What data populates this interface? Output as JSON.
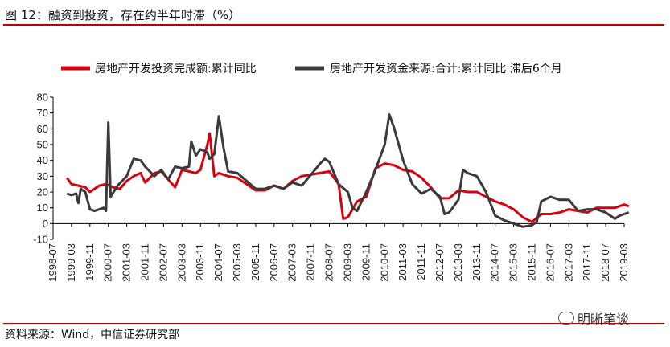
{
  "title": "图 12：融资到投资，存在约半年时滞（%）",
  "source": "资料来源：Wind，中信证券研究部",
  "watermark": "明晰笔谈",
  "chart_data": {
    "type": "line",
    "legend_position": "top",
    "ylim": [
      -10,
      80
    ],
    "yticks": [
      -10,
      0,
      10,
      20,
      30,
      40,
      50,
      60,
      70,
      80
    ],
    "xlim": [
      "1998-07",
      "2019-03"
    ],
    "xticks": [
      "1998-07",
      "1999-03",
      "1999-11",
      "2000-07",
      "2001-03",
      "2001-11",
      "2002-07",
      "2003-03",
      "2003-11",
      "2004-07",
      "2005-03",
      "2005-11",
      "2006-07",
      "2007-03",
      "2007-11",
      "2008-07",
      "2009-03",
      "2009-11",
      "2010-07",
      "2011-03",
      "2011-11",
      "2012-07",
      "2013-03",
      "2013-11",
      "2014-07",
      "2015-03",
      "2015-11",
      "2016-07",
      "2017-03",
      "2017-11",
      "2018-07",
      "2019-03"
    ],
    "series": [
      {
        "name": "房地产开发投资完成额:累计同比",
        "color": "#d7000f",
        "points": [
          [
            "1999-01",
            29
          ],
          [
            "1999-03",
            25
          ],
          [
            "1999-06",
            24
          ],
          [
            "1999-09",
            23
          ],
          [
            "1999-11",
            20
          ],
          [
            "2000-03",
            24
          ],
          [
            "2000-06",
            25
          ],
          [
            "2000-09",
            23
          ],
          [
            "2000-12",
            22
          ],
          [
            "2001-03",
            27
          ],
          [
            "2001-06",
            30
          ],
          [
            "2001-09",
            32
          ],
          [
            "2001-11",
            26
          ],
          [
            "2002-03",
            32
          ],
          [
            "2002-06",
            33
          ],
          [
            "2002-09",
            28
          ],
          [
            "2002-12",
            23
          ],
          [
            "2003-03",
            34
          ],
          [
            "2003-06",
            33
          ],
          [
            "2003-09",
            32
          ],
          [
            "2003-11",
            34
          ],
          [
            "2004-02",
            50
          ],
          [
            "2004-03",
            57
          ],
          [
            "2004-05",
            30
          ],
          [
            "2004-07",
            32
          ],
          [
            "2004-11",
            30
          ],
          [
            "2005-03",
            29
          ],
          [
            "2005-07",
            25
          ],
          [
            "2005-11",
            21
          ],
          [
            "2006-03",
            21
          ],
          [
            "2006-07",
            24
          ],
          [
            "2006-11",
            22
          ],
          [
            "2007-03",
            27
          ],
          [
            "2007-07",
            30
          ],
          [
            "2007-11",
            31
          ],
          [
            "2008-03",
            32
          ],
          [
            "2008-07",
            33
          ],
          [
            "2008-11",
            25
          ],
          [
            "2009-01",
            3
          ],
          [
            "2009-03",
            4
          ],
          [
            "2009-07",
            14
          ],
          [
            "2009-11",
            17
          ],
          [
            "2010-03",
            35
          ],
          [
            "2010-07",
            38
          ],
          [
            "2010-11",
            37
          ],
          [
            "2011-03",
            34
          ],
          [
            "2011-07",
            33
          ],
          [
            "2011-11",
            29
          ],
          [
            "2012-03",
            23
          ],
          [
            "2012-07",
            16
          ],
          [
            "2012-11",
            16
          ],
          [
            "2013-03",
            21
          ],
          [
            "2013-07",
            20
          ],
          [
            "2013-11",
            20
          ],
          [
            "2014-03",
            17
          ],
          [
            "2014-07",
            14
          ],
          [
            "2014-11",
            12
          ],
          [
            "2015-03",
            9
          ],
          [
            "2015-07",
            4
          ],
          [
            "2015-11",
            1
          ],
          [
            "2016-03",
            6
          ],
          [
            "2016-07",
            6
          ],
          [
            "2016-11",
            7
          ],
          [
            "2017-03",
            9
          ],
          [
            "2017-07",
            8
          ],
          [
            "2017-11",
            7
          ],
          [
            "2018-03",
            10
          ],
          [
            "2018-07",
            10
          ],
          [
            "2018-11",
            10
          ],
          [
            "2019-01",
            11
          ],
          [
            "2019-03",
            12
          ],
          [
            "2019-05",
            11
          ]
        ]
      },
      {
        "name": "房地产开发资金来源:合计:累计同比 滞后6个月",
        "color": "#3a3a3a",
        "points": [
          [
            "1999-01",
            19
          ],
          [
            "1999-03",
            18
          ],
          [
            "1999-05",
            19
          ],
          [
            "1999-06",
            13
          ],
          [
            "1999-07",
            22
          ],
          [
            "1999-09",
            20
          ],
          [
            "1999-11",
            9
          ],
          [
            "2000-01",
            8
          ],
          [
            "2000-05",
            10
          ],
          [
            "2000-06",
            8
          ],
          [
            "2000-07",
            64
          ],
          [
            "2000-08",
            17
          ],
          [
            "2000-11",
            24
          ],
          [
            "2001-03",
            30
          ],
          [
            "2001-06",
            41
          ],
          [
            "2001-09",
            40
          ],
          [
            "2001-11",
            36
          ],
          [
            "2002-03",
            30
          ],
          [
            "2002-06",
            34
          ],
          [
            "2002-09",
            28
          ],
          [
            "2002-12",
            36
          ],
          [
            "2003-03",
            35
          ],
          [
            "2003-06",
            36
          ],
          [
            "2003-07",
            52
          ],
          [
            "2003-09",
            43
          ],
          [
            "2003-11",
            47
          ],
          [
            "2004-02",
            45
          ],
          [
            "2004-03",
            41
          ],
          [
            "2004-05",
            44
          ],
          [
            "2004-07",
            68
          ],
          [
            "2004-09",
            48
          ],
          [
            "2004-11",
            33
          ],
          [
            "2005-03",
            32
          ],
          [
            "2005-07",
            27
          ],
          [
            "2005-11",
            22
          ],
          [
            "2006-03",
            22
          ],
          [
            "2006-07",
            24
          ],
          [
            "2006-11",
            22
          ],
          [
            "2007-03",
            26
          ],
          [
            "2007-07",
            24
          ],
          [
            "2007-11",
            31
          ],
          [
            "2008-03",
            38
          ],
          [
            "2008-05",
            41
          ],
          [
            "2008-07",
            39
          ],
          [
            "2008-11",
            25
          ],
          [
            "2009-03",
            20
          ],
          [
            "2009-05",
            10
          ],
          [
            "2009-07",
            8
          ],
          [
            "2009-11",
            20
          ],
          [
            "2010-03",
            34
          ],
          [
            "2010-07",
            50
          ],
          [
            "2010-09",
            69
          ],
          [
            "2010-11",
            61
          ],
          [
            "2011-03",
            40
          ],
          [
            "2011-07",
            25
          ],
          [
            "2011-11",
            19
          ],
          [
            "2012-03",
            22
          ],
          [
            "2012-07",
            17
          ],
          [
            "2012-09",
            6
          ],
          [
            "2012-11",
            7
          ],
          [
            "2013-03",
            15
          ],
          [
            "2013-05",
            34
          ],
          [
            "2013-07",
            32
          ],
          [
            "2013-11",
            30
          ],
          [
            "2014-03",
            20
          ],
          [
            "2014-07",
            5
          ],
          [
            "2014-11",
            2
          ],
          [
            "2015-03",
            0
          ],
          [
            "2015-07",
            -2
          ],
          [
            "2015-11",
            -1
          ],
          [
            "2016-01",
            1
          ],
          [
            "2016-03",
            14
          ],
          [
            "2016-07",
            17
          ],
          [
            "2016-11",
            15
          ],
          [
            "2017-03",
            15
          ],
          [
            "2017-07",
            8
          ],
          [
            "2017-11",
            9
          ],
          [
            "2018-03",
            9
          ],
          [
            "2018-07",
            7
          ],
          [
            "2018-11",
            3
          ],
          [
            "2019-01",
            5
          ],
          [
            "2019-03",
            6
          ],
          [
            "2019-05",
            7
          ]
        ]
      }
    ]
  }
}
